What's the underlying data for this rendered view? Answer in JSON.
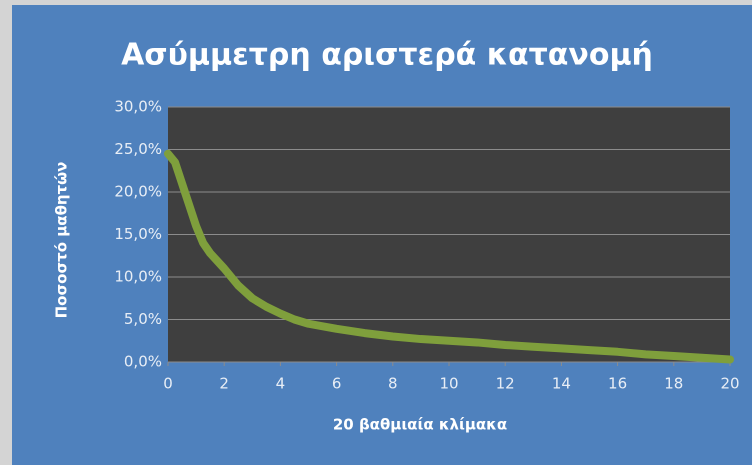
{
  "chart_data": {
    "type": "line",
    "title": "Ασύμμετρη αριστερά κατανομή",
    "x_label": "20 βαθμιαία κλίμακα",
    "y_label": "Ποσοστό μαθητών",
    "x": [
      0,
      0.25,
      0.5,
      0.75,
      1,
      1.25,
      1.5,
      2,
      2.5,
      3,
      3.5,
      4,
      4.5,
      5,
      6,
      7,
      8,
      9,
      10,
      11,
      12,
      13,
      14,
      15,
      16,
      17,
      18,
      19,
      20
    ],
    "values": [
      24.5,
      23.5,
      21,
      18.5,
      16,
      14,
      12.8,
      11,
      9,
      7.5,
      6.5,
      5.7,
      5,
      4.5,
      3.9,
      3.4,
      3.0,
      2.7,
      2.5,
      2.3,
      2.0,
      1.8,
      1.6,
      1.4,
      1.2,
      0.9,
      0.7,
      0.5,
      0.3
    ],
    "color": "#7f9f3c",
    "xlim": [
      0,
      20
    ],
    "xticks": [
      0,
      2,
      4,
      6,
      8,
      10,
      12,
      14,
      16,
      18,
      20
    ],
    "ylim": [
      0,
      30
    ],
    "yticks": [
      {
        "value": 0,
        "label": "0,0%"
      },
      {
        "value": 5,
        "label": "5,0%"
      },
      {
        "value": 10,
        "label": "10,0%"
      },
      {
        "value": 15,
        "label": "15,0%"
      },
      {
        "value": 20,
        "label": "20,0%"
      },
      {
        "value": 25,
        "label": "25,0%"
      },
      {
        "value": 30,
        "label": "30,0%"
      }
    ],
    "grid": true
  }
}
